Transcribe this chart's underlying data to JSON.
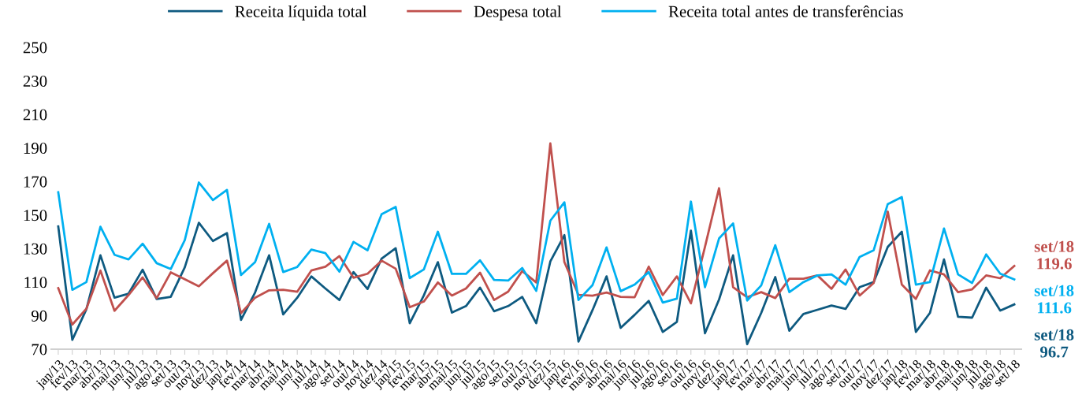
{
  "chart_data": {
    "type": "line",
    "categories": [
      "jan/13",
      "fev/13",
      "mar/13",
      "abr/13",
      "mai/13",
      "jun/13",
      "jul/13",
      "ago/13",
      "set/13",
      "out/13",
      "nov/13",
      "dez/13",
      "jan/14",
      "fev/14",
      "mar/14",
      "abr/14",
      "mai/14",
      "jun/14",
      "jul/14",
      "ago/14",
      "set/14",
      "out/14",
      "nov/14",
      "dez/14",
      "jan/15",
      "fev/15",
      "mar/15",
      "abr/15",
      "mai/15",
      "jun/15",
      "jul/15",
      "ago/15",
      "set/15",
      "out/15",
      "nov/15",
      "dez/15",
      "jan/16",
      "fev/16",
      "mar/16",
      "abr/16",
      "mai/16",
      "jun/16",
      "jul/16",
      "ago/16",
      "set/16",
      "out/16",
      "nov/16",
      "dez/16",
      "jan/17",
      "fev/17",
      "mar/17",
      "abr/17",
      "mai/17",
      "jun/17",
      "jul/17",
      "ago/17",
      "set/17",
      "out/17",
      "nov/17",
      "dez/17",
      "jan/18",
      "fev/18",
      "mar/18",
      "abr/18",
      "mai/18",
      "jun/18",
      "jul/18",
      "ago/18",
      "set/18"
    ],
    "series": [
      {
        "name": "Receita líquida total",
        "color": "#0e5a80",
        "values": [
          143.2,
          75.6,
          93.8,
          126,
          100.7,
          103.1,
          117.4,
          99.9,
          101.2,
          118.8,
          145.4,
          134.5,
          139.2,
          87.5,
          103.8,
          126,
          90.7,
          100.7,
          113.4,
          106.2,
          99.3,
          116,
          105.9,
          124,
          130.2,
          85.5,
          102,
          121.9,
          91.8,
          95.7,
          106.7,
          92.6,
          95.7,
          101.2,
          85.5,
          122.3,
          138,
          74.5,
          93.3,
          113.4,
          82.7,
          90.5,
          98.8,
          80.3,
          86.3,
          140.7,
          79.5,
          99.6,
          126,
          73,
          91.6,
          113,
          81,
          91,
          93.5,
          96,
          94,
          107,
          110,
          131,
          140,
          80.3,
          91.6,
          123.5,
          89.3,
          88.8,
          106.7,
          93,
          96.7
        ]
      },
      {
        "name": "Despesa total",
        "color": "#c0504d",
        "values": [
          106.4,
          84.7,
          94.1,
          116.9,
          92.9,
          102.3,
          112.8,
          100.4,
          115.8,
          111.7,
          107.5,
          115.3,
          122.8,
          91.5,
          100.7,
          105.1,
          105.4,
          104.3,
          116.9,
          119.2,
          125.5,
          112.6,
          115,
          122.8,
          118,
          95,
          98.4,
          109.8,
          102,
          106.2,
          115.6,
          99.3,
          104.3,
          116.6,
          109.8,
          192.7,
          121.9,
          102.4,
          101.9,
          103.8,
          101.2,
          101,
          119.2,
          102.3,
          113.4,
          97.3,
          131,
          166,
          107,
          101,
          104,
          100.5,
          112,
          112,
          114,
          106,
          117.5,
          102,
          109.5,
          152,
          108.5,
          100,
          117,
          114.6,
          104,
          105.7,
          114,
          112.3,
          119.6
        ]
      },
      {
        "name": "Receita total antes de transferências",
        "color": "#00b0f0",
        "values": [
          163.6,
          105.4,
          110,
          143,
          126.3,
          123.5,
          132.9,
          121.3,
          117.8,
          135,
          169.4,
          158.9,
          165,
          114.2,
          121.9,
          144.7,
          116,
          119,
          129.4,
          127.3,
          116.2,
          134,
          129,
          150.5,
          154.8,
          112.4,
          117.5,
          140,
          114.9,
          114.9,
          123,
          111.3,
          110.9,
          118.4,
          104.8,
          146.6,
          157.6,
          99.3,
          108.2,
          130.7,
          104.6,
          108.5,
          116,
          97.8,
          100.1,
          158,
          107,
          136,
          145,
          99,
          108,
          132,
          104,
          110,
          114,
          114.6,
          108.5,
          125,
          129,
          156.5,
          160.7,
          108.5,
          110,
          142,
          114.6,
          109.5,
          126.5,
          115,
          111.6
        ]
      }
    ],
    "ylim": [
      70,
      250
    ],
    "yticks": [
      70,
      90,
      110,
      130,
      150,
      170,
      190,
      210,
      230,
      250
    ],
    "annotations": [
      {
        "text": "set/18\n119.6",
        "x": "set/18",
        "y": 119.6
      },
      {
        "text": "set/18\n111.6",
        "x": "set/18",
        "y": 111.6
      },
      {
        "text": "set/18\n96.7",
        "x": "set/18",
        "y": 96.7
      }
    ],
    "legend": "top",
    "grid": false,
    "marker": "none",
    "line_style": "solid"
  }
}
